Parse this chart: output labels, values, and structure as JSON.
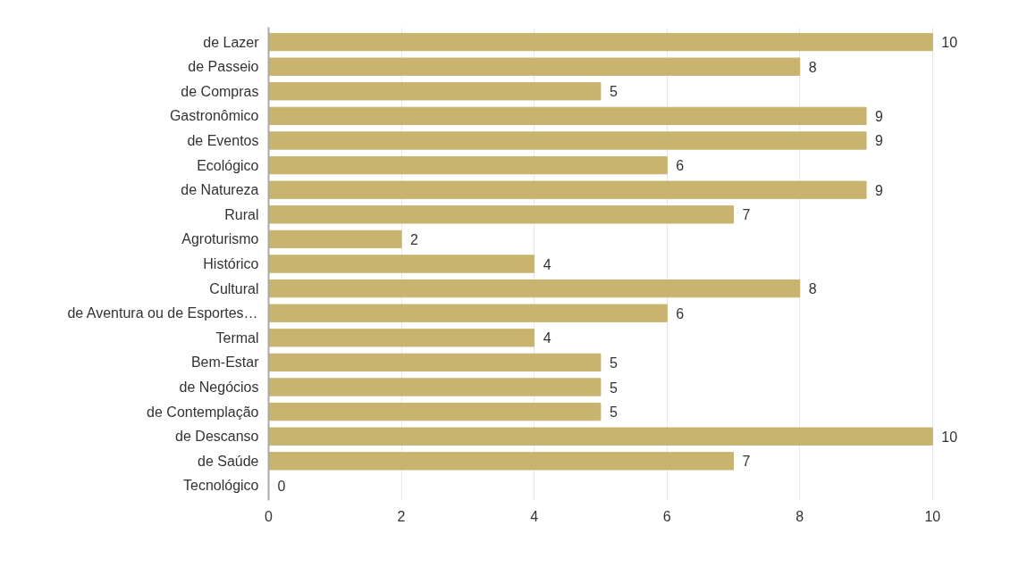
{
  "chart_data": {
    "type": "bar",
    "orientation": "horizontal",
    "categories": [
      "de Lazer",
      "de Passeio",
      "de Compras",
      "Gastronômico",
      "de Eventos",
      "Ecológico",
      "de Natureza",
      "Rural",
      "Agroturismo",
      "Histórico",
      "Cultural",
      "de Aventura ou de Esportes…",
      "Termal",
      "Bem-Estar",
      "de Negócios",
      "de Contemplação",
      "de Descanso",
      "de Saúde",
      "Tecnológico"
    ],
    "values": [
      10,
      8,
      5,
      9,
      9,
      6,
      9,
      7,
      2,
      4,
      8,
      6,
      4,
      5,
      5,
      5,
      10,
      7,
      0
    ],
    "color": "#c8b46e",
    "xlim": [
      0,
      10
    ],
    "xticks": [
      0,
      2,
      4,
      6,
      8,
      10
    ],
    "grid": "x",
    "data_labels": true
  }
}
